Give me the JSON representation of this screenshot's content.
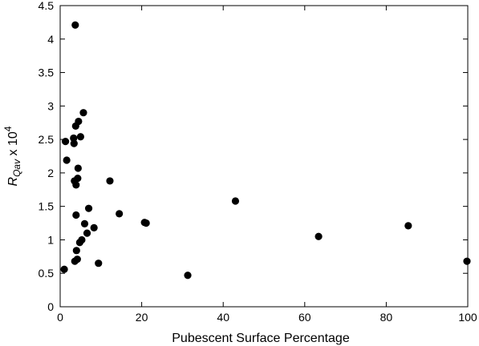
{
  "chart_data": {
    "type": "scatter",
    "title": "",
    "xlabel": "Pubescent Surface Percentage",
    "ylabel": {
      "symbol": "R",
      "subscript": "Qav",
      "rest": " x 10",
      "superscript": "4"
    },
    "xlim": [
      0,
      100
    ],
    "ylim": [
      0,
      4.5
    ],
    "xticks": [
      0,
      20,
      40,
      60,
      80,
      100
    ],
    "yticks": [
      0,
      0.5,
      1,
      1.5,
      2,
      2.5,
      3,
      3.5,
      4,
      4.5
    ],
    "grid": false,
    "legend": "none",
    "marker_color": "#000000",
    "points": [
      {
        "x": 1.0,
        "y": 0.56
      },
      {
        "x": 1.3,
        "y": 2.47
      },
      {
        "x": 1.6,
        "y": 2.19
      },
      {
        "x": 3.3,
        "y": 2.52
      },
      {
        "x": 3.4,
        "y": 2.44
      },
      {
        "x": 3.5,
        "y": 1.88
      },
      {
        "x": 3.6,
        "y": 0.68
      },
      {
        "x": 3.7,
        "y": 4.21
      },
      {
        "x": 3.8,
        "y": 2.7
      },
      {
        "x": 3.9,
        "y": 1.82
      },
      {
        "x": 3.9,
        "y": 1.37
      },
      {
        "x": 4.0,
        "y": 0.84
      },
      {
        "x": 4.2,
        "y": 0.71
      },
      {
        "x": 4.3,
        "y": 1.92
      },
      {
        "x": 4.4,
        "y": 2.07
      },
      {
        "x": 4.5,
        "y": 2.77
      },
      {
        "x": 4.8,
        "y": 0.96
      },
      {
        "x": 5.0,
        "y": 2.54
      },
      {
        "x": 5.3,
        "y": 1.0
      },
      {
        "x": 5.7,
        "y": 2.9
      },
      {
        "x": 6.0,
        "y": 1.24
      },
      {
        "x": 6.6,
        "y": 1.1
      },
      {
        "x": 7.0,
        "y": 1.47
      },
      {
        "x": 8.3,
        "y": 1.18
      },
      {
        "x": 9.4,
        "y": 0.65
      },
      {
        "x": 12.2,
        "y": 1.88
      },
      {
        "x": 14.5,
        "y": 1.39
      },
      {
        "x": 20.7,
        "y": 1.26
      },
      {
        "x": 21.1,
        "y": 1.25
      },
      {
        "x": 31.3,
        "y": 0.47
      },
      {
        "x": 43.0,
        "y": 1.58
      },
      {
        "x": 63.4,
        "y": 1.05
      },
      {
        "x": 85.4,
        "y": 1.21
      },
      {
        "x": 99.8,
        "y": 0.68
      }
    ]
  }
}
